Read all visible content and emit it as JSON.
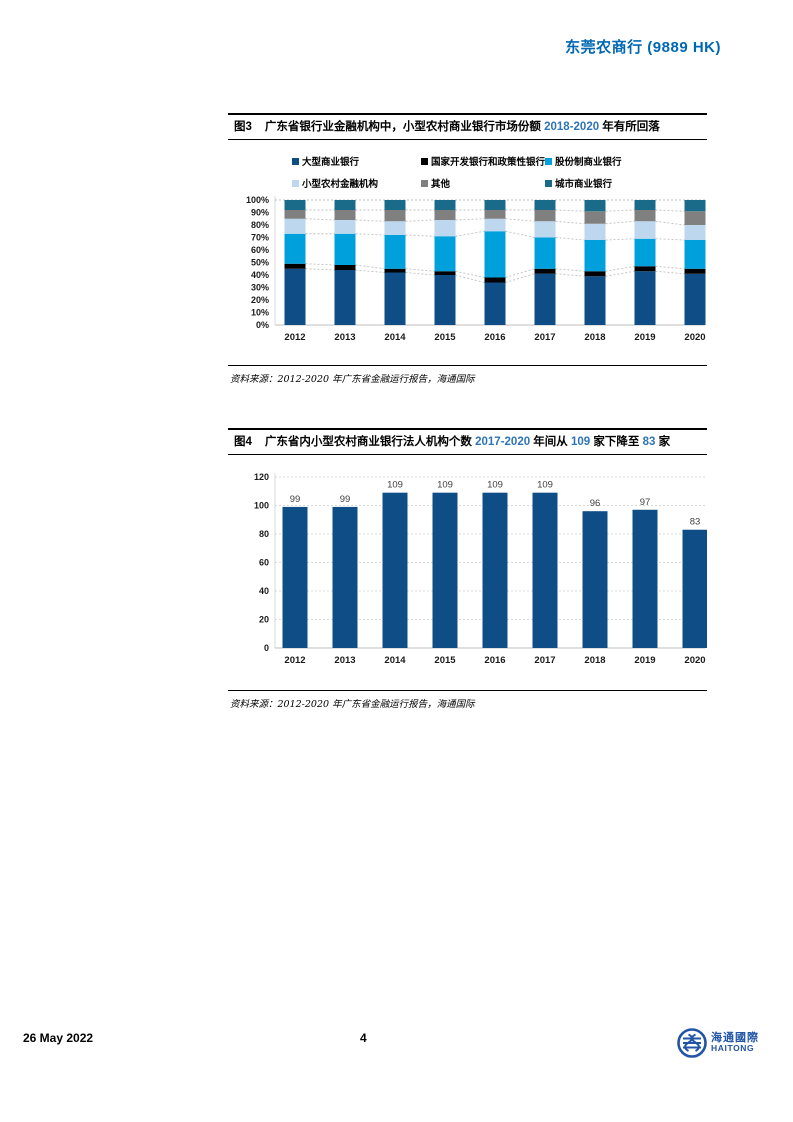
{
  "theme": {
    "header_blue": "#0068B3",
    "title_number_blue": "#2E74B5",
    "logo_blue": "#2154A6",
    "axis_label_color": "#1a1a1a",
    "grid_color": "#BFBFBF",
    "axis_line_color": "#D9D9D9",
    "value_label_color": "#404040"
  },
  "header": {
    "title": "东莞农商行 (9889 HK)"
  },
  "footer": {
    "date": "26 May 2022",
    "page_number": "4",
    "logo": {
      "cn": "海通國際",
      "en": "HAITONG"
    }
  },
  "figure3": {
    "label": "图3",
    "title_parts": [
      {
        "text": "广东省银行业金融机构中，小型农村商业银行市场份额 ",
        "color": "#000000"
      },
      {
        "text": "2018-2020",
        "color": "#2E74B5"
      },
      {
        "text": " 年有所回落",
        "color": "#000000"
      }
    ],
    "source": "资料来源：2012-2020 年广东省金融运行报告，海通国际",
    "chart_data": {
      "type": "stacked-bar-100",
      "categories": [
        "2012",
        "2013",
        "2014",
        "2015",
        "2016",
        "2017",
        "2018",
        "2019",
        "2020"
      ],
      "series": [
        {
          "name": "大型商业银行",
          "color": "#0E4D85",
          "values": [
            45,
            44,
            42,
            40,
            34,
            41,
            39,
            43,
            41
          ]
        },
        {
          "name": "国家开发银行和政策性银行",
          "color": "#000000",
          "values": [
            4,
            4,
            3,
            3,
            4,
            4,
            4,
            4,
            4
          ]
        },
        {
          "name": "股份制商业银行",
          "color": "#00A0DC",
          "values": [
            24,
            25,
            27,
            28,
            37,
            25,
            25,
            22,
            23
          ]
        },
        {
          "name": "小型农村金融机构",
          "color": "#BDD7EE",
          "values": [
            12,
            11,
            11,
            13,
            10,
            13,
            13,
            14,
            12
          ]
        },
        {
          "name": "其他",
          "color": "#808080",
          "values": [
            7,
            8,
            9,
            8,
            7,
            9,
            10,
            9,
            11
          ]
        },
        {
          "name": "城市商业银行",
          "color": "#1A6B8A",
          "values": [
            8,
            8,
            8,
            8,
            8,
            8,
            9,
            8,
            9
          ]
        }
      ],
      "ylim": [
        0,
        100
      ],
      "ytick_step": 10,
      "ytick_suffix": "%",
      "grid": "series-connector-lines",
      "legend_position": "top"
    }
  },
  "figure4": {
    "label": "图4",
    "title_parts": [
      {
        "text": "广东省内小型农村商业银行法人机构个数 ",
        "color": "#000000"
      },
      {
        "text": "2017-2020",
        "color": "#2E74B5"
      },
      {
        "text": " 年间从 ",
        "color": "#000000"
      },
      {
        "text": "109",
        "color": "#2E74B5"
      },
      {
        "text": " 家下降至 ",
        "color": "#000000"
      },
      {
        "text": "83",
        "color": "#2E74B5"
      },
      {
        "text": " 家",
        "color": "#000000"
      }
    ],
    "source": "资料来源：2012-2020 年广东省金融运行报告，海通国际",
    "chart_data": {
      "type": "bar",
      "categories": [
        "2012",
        "2013",
        "2014",
        "2015",
        "2016",
        "2017",
        "2018",
        "2019",
        "2020"
      ],
      "values": [
        99,
        99,
        109,
        109,
        109,
        109,
        96,
        97,
        83
      ],
      "bar_color": "#0E4D85",
      "ylim": [
        0,
        120
      ],
      "ytick_step": 20,
      "ytick_suffix": "",
      "grid": "dashed-horizontal",
      "data_labels": true
    }
  }
}
